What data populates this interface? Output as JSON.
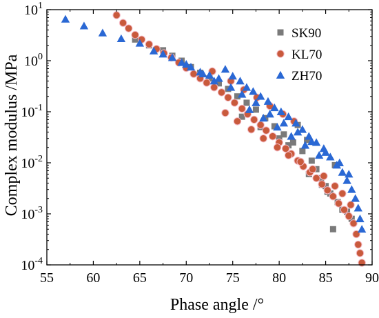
{
  "chart_data": {
    "type": "scatter",
    "title": "",
    "xlabel": "Phase angle /°",
    "ylabel": "Complex modulus /MPa",
    "xlim": [
      55,
      90
    ],
    "ylim": [
      0.0001,
      10
    ],
    "yscale": "log",
    "grid": false,
    "legend_position": "top-right",
    "x_ticks": [
      55,
      60,
      65,
      70,
      75,
      80,
      85,
      90
    ],
    "y_ticks": [
      {
        "value": 0.0001,
        "base": "10",
        "exp": "-4"
      },
      {
        "value": 0.001,
        "base": "10",
        "exp": "-3"
      },
      {
        "value": 0.01,
        "base": "10",
        "exp": "-2"
      },
      {
        "value": 0.1,
        "base": "10",
        "exp": "-1"
      },
      {
        "value": 1,
        "base": "10",
        "exp": "0"
      },
      {
        "value": 10,
        "base": "10",
        "exp": "1"
      }
    ],
    "series": [
      {
        "name": "SK90",
        "marker": "square",
        "color": "#7a7a7a",
        "points": [
          [
            64.5,
            2.6
          ],
          [
            66,
            2.0
          ],
          [
            67.5,
            1.6
          ],
          [
            68.5,
            1.25
          ],
          [
            69.5,
            1.0
          ],
          [
            70.5,
            0.75
          ],
          [
            71.5,
            0.58
          ],
          [
            72.5,
            0.45
          ],
          [
            73.5,
            0.36
          ],
          [
            74.5,
            0.28
          ],
          [
            75.5,
            0.2
          ],
          [
            76.5,
            0.15
          ],
          [
            77.5,
            0.11
          ],
          [
            78.5,
            0.075
          ],
          [
            79.5,
            0.052
          ],
          [
            80.5,
            0.036
          ],
          [
            81.5,
            0.025
          ],
          [
            82,
            0.055
          ],
          [
            82.5,
            0.017
          ],
          [
            83,
            0.028
          ],
          [
            83.5,
            0.011
          ],
          [
            84,
            0.0075
          ],
          [
            84.5,
            0.005
          ],
          [
            85,
            0.0035
          ],
          [
            85.5,
            0.0025
          ],
          [
            85.8,
            0.0005
          ],
          [
            86,
            0.009
          ],
          [
            86.3,
            0.0017
          ],
          [
            86.8,
            0.0012
          ],
          [
            87.3,
            0.0011
          ],
          [
            87.8,
            0.0008
          ],
          [
            76,
            0.08
          ],
          [
            78,
            0.05
          ],
          [
            80,
            0.03
          ],
          [
            81,
            0.022
          ],
          [
            83.2,
            0.006
          ],
          [
            84.6,
            0.0037
          ],
          [
            85.2,
            0.0027
          ]
        ]
      },
      {
        "name": "KL70",
        "marker": "circle",
        "color": "#c95a3c",
        "points": [
          [
            62.5,
            7.8
          ],
          [
            63.2,
            5.5
          ],
          [
            63.8,
            4.3
          ],
          [
            64.5,
            3.2
          ],
          [
            65.2,
            2.6
          ],
          [
            66,
            2.1
          ],
          [
            66.8,
            1.7
          ],
          [
            67.6,
            1.4
          ],
          [
            68.4,
            1.15
          ],
          [
            69.2,
            0.92
          ],
          [
            70,
            0.72
          ],
          [
            70.8,
            0.55
          ],
          [
            71.5,
            0.45
          ],
          [
            72.2,
            0.37
          ],
          [
            73,
            0.3
          ],
          [
            73.8,
            0.24
          ],
          [
            74.5,
            0.19
          ],
          [
            75.2,
            0.15
          ],
          [
            76,
            0.115
          ],
          [
            76.6,
            0.09
          ],
          [
            77.3,
            0.07
          ],
          [
            78,
            0.055
          ],
          [
            78.6,
            0.043
          ],
          [
            79.3,
            0.033
          ],
          [
            80,
            0.025
          ],
          [
            80.7,
            0.019
          ],
          [
            81.3,
            0.015
          ],
          [
            82,
            0.011
          ],
          [
            82.6,
            0.0085
          ],
          [
            83.3,
            0.0065
          ],
          [
            84,
            0.005
          ],
          [
            84.6,
            0.0038
          ],
          [
            85.2,
            0.0029
          ],
          [
            85.8,
            0.0022
          ],
          [
            86.4,
            0.0016
          ],
          [
            87,
            0.0012
          ],
          [
            87.5,
            0.0009
          ],
          [
            88,
            0.00065
          ],
          [
            88.3,
            0.0004
          ],
          [
            88.5,
            0.00025
          ],
          [
            88.7,
            0.00017
          ],
          [
            88.9,
            0.00011
          ],
          [
            74.2,
            0.095
          ],
          [
            75.5,
            0.065
          ],
          [
            77,
            0.045
          ],
          [
            78.3,
            0.03
          ],
          [
            79.8,
            0.02
          ],
          [
            81,
            0.014
          ],
          [
            82.3,
            0.0105
          ],
          [
            83.6,
            0.0075
          ],
          [
            84.8,
            0.0055
          ],
          [
            86,
            0.0035
          ],
          [
            86.8,
            0.0025
          ],
          [
            87.7,
            0.0015
          ],
          [
            72.8,
            0.62
          ],
          [
            74.8,
            0.4
          ],
          [
            76.2,
            0.27
          ],
          [
            77.6,
            0.19
          ],
          [
            79,
            0.13
          ],
          [
            80.4,
            0.09
          ],
          [
            81.6,
            0.065
          ]
        ]
      },
      {
        "name": "ZH70",
        "marker": "triangle",
        "color": "#2a68d4",
        "points": [
          [
            57,
            6.5
          ],
          [
            59,
            4.8
          ],
          [
            61,
            3.5
          ],
          [
            63,
            2.7
          ],
          [
            65,
            2.2
          ],
          [
            66.5,
            1.55
          ],
          [
            67.5,
            1.35
          ],
          [
            68.5,
            1.15
          ],
          [
            69.5,
            0.92
          ],
          [
            70.5,
            0.75
          ],
          [
            71.5,
            0.6
          ],
          [
            72.5,
            0.52
          ],
          [
            73.5,
            0.45
          ],
          [
            74.2,
            0.68
          ],
          [
            75,
            0.5
          ],
          [
            75.8,
            0.4
          ],
          [
            76.5,
            0.3
          ],
          [
            77.2,
            0.25
          ],
          [
            78,
            0.2
          ],
          [
            78.8,
            0.16
          ],
          [
            79.5,
            0.12
          ],
          [
            80.2,
            0.1
          ],
          [
            81,
            0.08
          ],
          [
            81.8,
            0.06
          ],
          [
            82.5,
            0.045
          ],
          [
            83.2,
            0.033
          ],
          [
            84,
            0.025
          ],
          [
            84.8,
            0.019
          ],
          [
            85.5,
            0.013
          ],
          [
            86.2,
            0.009
          ],
          [
            86.8,
            0.0065
          ],
          [
            87.3,
            0.0045
          ],
          [
            87.8,
            0.003
          ],
          [
            88.2,
            0.002
          ],
          [
            88.5,
            0.0013
          ],
          [
            88.7,
            0.0008
          ],
          [
            88.9,
            0.0005
          ],
          [
            70,
            0.85
          ],
          [
            71.8,
            0.55
          ],
          [
            73,
            0.4
          ],
          [
            74.8,
            0.3
          ],
          [
            76,
            0.22
          ],
          [
            77.5,
            0.15
          ],
          [
            79,
            0.09
          ],
          [
            80.5,
            0.06
          ],
          [
            82,
            0.04
          ],
          [
            83.5,
            0.026
          ],
          [
            85,
            0.016
          ],
          [
            86.5,
            0.01
          ],
          [
            87.5,
            0.006
          ],
          [
            76.8,
            0.11
          ],
          [
            78.3,
            0.075
          ],
          [
            79.8,
            0.05
          ],
          [
            81.3,
            0.033
          ],
          [
            82.8,
            0.022
          ],
          [
            84.3,
            0.014
          ]
        ]
      }
    ]
  }
}
